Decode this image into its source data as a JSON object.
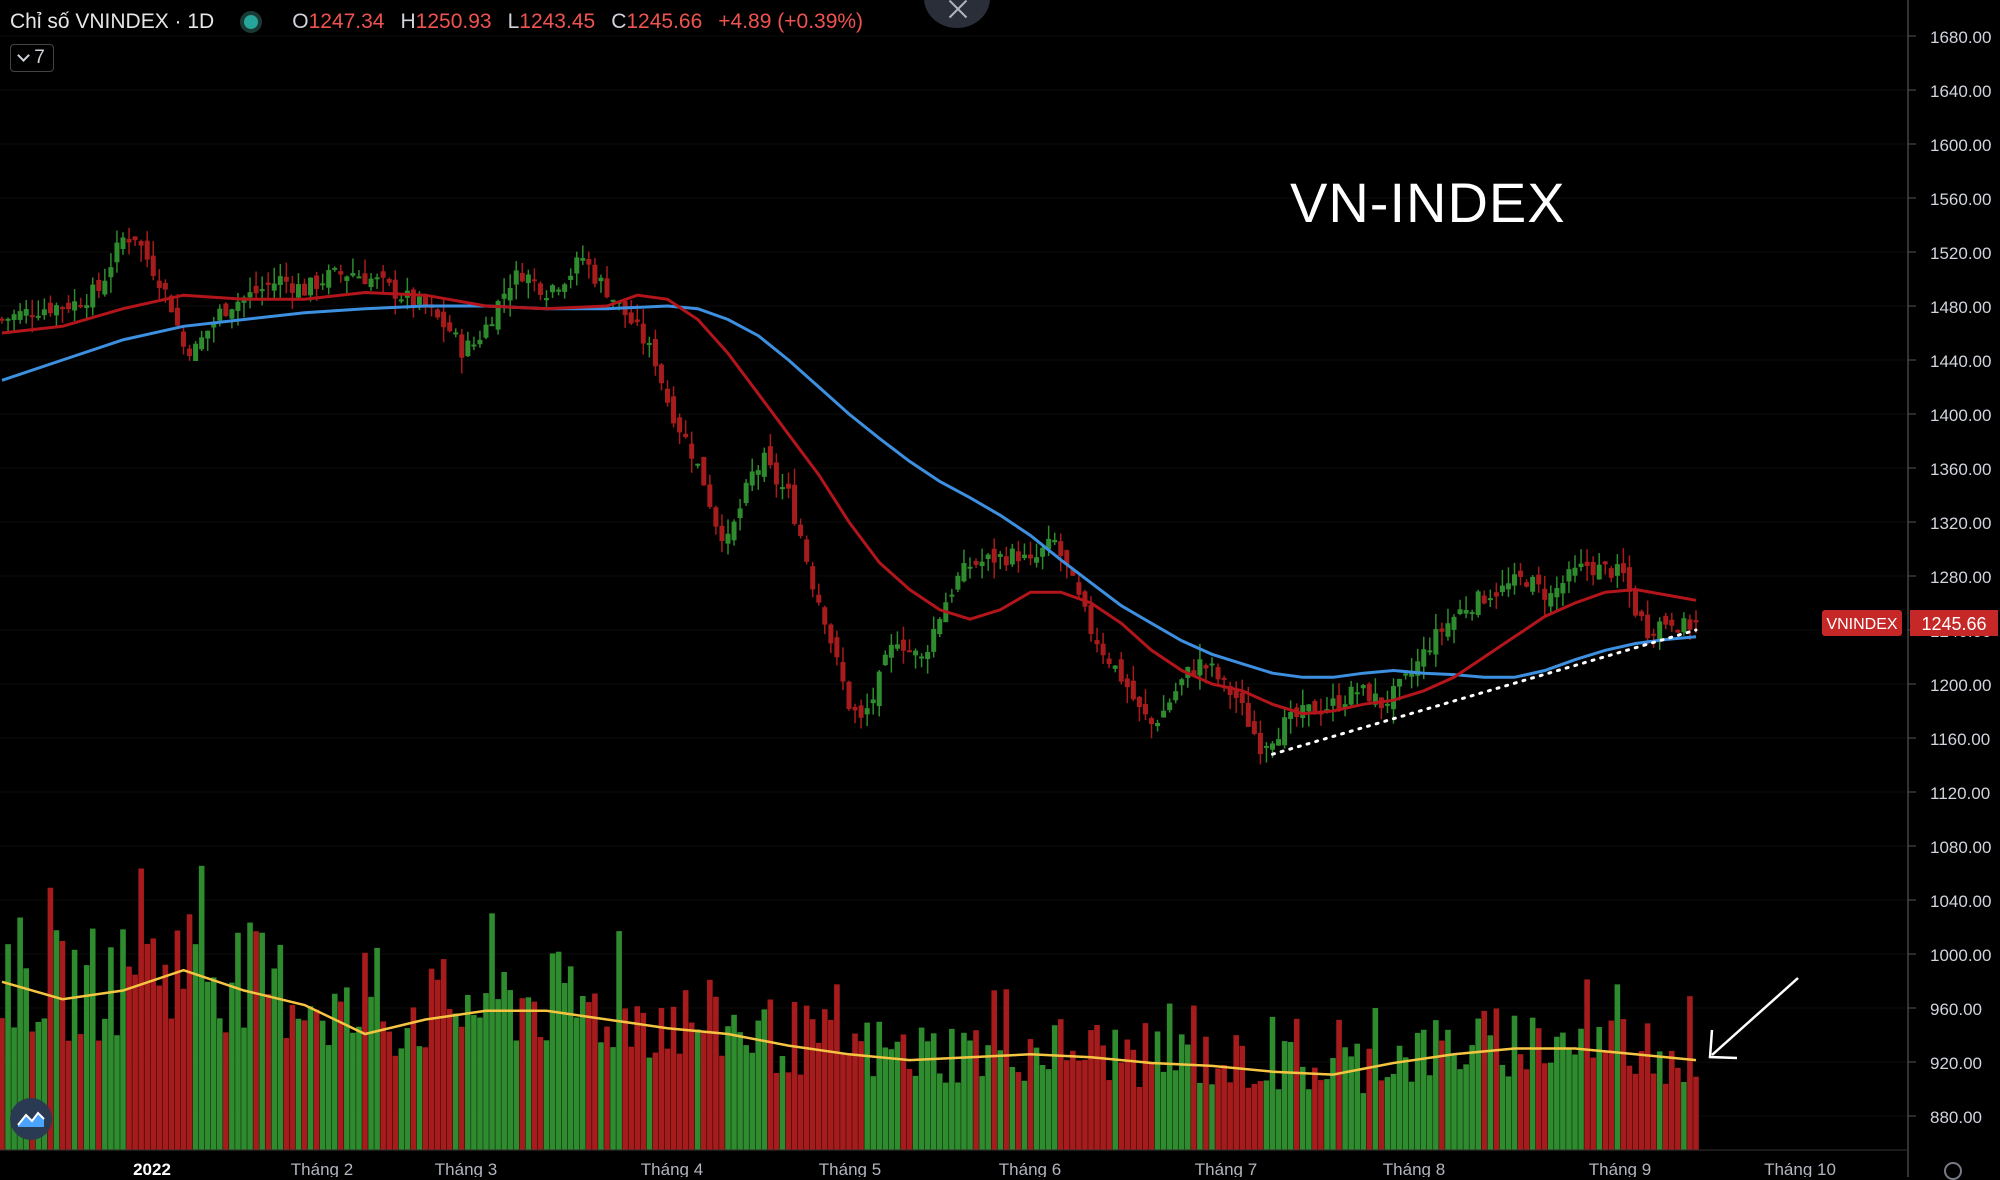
{
  "header": {
    "symbol": "Chỉ số VNINDEX · 1D",
    "o_label": "O",
    "o_value": "1247.34",
    "h_label": "H",
    "h_value": "1250.93",
    "l_label": "L",
    "l_value": "1243.45",
    "c_label": "C",
    "c_value": "1245.66",
    "change": "+4.89 (+0.39%)"
  },
  "indicators_count": "7",
  "colors": {
    "up": "#2e8b2e",
    "down": "#a61c1c",
    "ma_red": "#b3151b",
    "ma_blue": "#3d8fe0",
    "vol_ma": "#f5c542",
    "price_tag": "#c62828"
  },
  "icons": {
    "close": "close-icon",
    "collapse": "chevron-down-icon",
    "logo": "tradingview-logo-icon",
    "settings": "gear-icon"
  },
  "chart_data": {
    "type": "candlestick",
    "title": "VN-INDEX",
    "price_axis": {
      "ylim": [
        860,
        1700
      ],
      "ticks": [
        "1680.00",
        "1640.00",
        "1600.00",
        "1560.00",
        "1520.00",
        "1480.00",
        "1440.00",
        "1400.00",
        "1360.00",
        "1320.00",
        "1280.00",
        "1240.00",
        "1200.00",
        "1160.00",
        "1120.00",
        "1080.00",
        "1040.00",
        "1000.00",
        "960.00",
        "920.00",
        "880.00"
      ]
    },
    "x_axis": {
      "labels": [
        "2022",
        "Tháng 2",
        "Tháng 3",
        "Tháng 4",
        "Tháng 5",
        "Tháng 6",
        "Tháng 7",
        "Tháng 8",
        "Tháng 9",
        "Tháng 10"
      ]
    },
    "last_price": {
      "label": "VNINDEX",
      "value": "1245.66"
    },
    "close_path": [
      [
        0,
        1470
      ],
      [
        6,
        1478
      ],
      [
        12,
        1482
      ],
      [
        16,
        1492
      ],
      [
        18,
        1512
      ],
      [
        20,
        1530
      ],
      [
        22,
        1532
      ],
      [
        24,
        1515
      ],
      [
        26,
        1500
      ],
      [
        28,
        1480
      ],
      [
        30,
        1450
      ],
      [
        32,
        1448
      ],
      [
        34,
        1462
      ],
      [
        36,
        1475
      ],
      [
        38,
        1482
      ],
      [
        42,
        1490
      ],
      [
        46,
        1500
      ],
      [
        50,
        1492
      ],
      [
        54,
        1502
      ],
      [
        58,
        1505
      ],
      [
        62,
        1498
      ],
      [
        66,
        1488
      ],
      [
        70,
        1478
      ],
      [
        74,
        1462
      ],
      [
        76,
        1448
      ],
      [
        78,
        1452
      ],
      [
        80,
        1465
      ],
      [
        82,
        1482
      ],
      [
        84,
        1498
      ],
      [
        86,
        1505
      ],
      [
        88,
        1498
      ],
      [
        90,
        1492
      ],
      [
        92,
        1498
      ],
      [
        94,
        1505
      ],
      [
        96,
        1516
      ],
      [
        98,
        1502
      ],
      [
        100,
        1492
      ],
      [
        102,
        1480
      ],
      [
        104,
        1468
      ],
      [
        106,
        1455
      ],
      [
        108,
        1440
      ],
      [
        110,
        1410
      ],
      [
        112,
        1390
      ],
      [
        114,
        1372
      ],
      [
        116,
        1350
      ],
      [
        118,
        1320
      ],
      [
        120,
        1305
      ],
      [
        122,
        1330
      ],
      [
        124,
        1355
      ],
      [
        126,
        1365
      ],
      [
        128,
        1350
      ],
      [
        130,
        1340
      ],
      [
        132,
        1310
      ],
      [
        134,
        1275
      ],
      [
        136,
        1250
      ],
      [
        138,
        1215
      ],
      [
        140,
        1185
      ],
      [
        142,
        1172
      ],
      [
        144,
        1190
      ],
      [
        146,
        1215
      ],
      [
        148,
        1235
      ],
      [
        150,
        1225
      ],
      [
        152,
        1218
      ],
      [
        154,
        1240
      ],
      [
        156,
        1262
      ],
      [
        158,
        1278
      ],
      [
        160,
        1288
      ],
      [
        164,
        1293
      ],
      [
        168,
        1296
      ],
      [
        170,
        1288
      ],
      [
        172,
        1298
      ],
      [
        174,
        1305
      ],
      [
        176,
        1285
      ],
      [
        178,
        1262
      ],
      [
        180,
        1240
      ],
      [
        182,
        1225
      ],
      [
        184,
        1212
      ],
      [
        186,
        1198
      ],
      [
        188,
        1180
      ],
      [
        190,
        1170
      ],
      [
        192,
        1180
      ],
      [
        194,
        1195
      ],
      [
        196,
        1208
      ],
      [
        198,
        1215
      ],
      [
        200,
        1210
      ],
      [
        202,
        1198
      ],
      [
        204,
        1190
      ],
      [
        206,
        1172
      ],
      [
        208,
        1155
      ],
      [
        210,
        1162
      ],
      [
        212,
        1170
      ],
      [
        214,
        1175
      ],
      [
        216,
        1180
      ],
      [
        218,
        1182
      ],
      [
        220,
        1185
      ],
      [
        222,
        1190
      ],
      [
        224,
        1195
      ],
      [
        226,
        1192
      ],
      [
        228,
        1185
      ],
      [
        230,
        1192
      ],
      [
        232,
        1202
      ],
      [
        234,
        1215
      ],
      [
        236,
        1230
      ],
      [
        238,
        1240
      ],
      [
        240,
        1250
      ],
      [
        242,
        1258
      ],
      [
        244,
        1262
      ],
      [
        246,
        1268
      ],
      [
        248,
        1270
      ],
      [
        250,
        1275
      ],
      [
        252,
        1278
      ],
      [
        254,
        1270
      ],
      [
        256,
        1265
      ],
      [
        258,
        1275
      ],
      [
        260,
        1282
      ],
      [
        262,
        1288
      ],
      [
        264,
        1285
      ],
      [
        266,
        1284
      ],
      [
        268,
        1280
      ],
      [
        270,
        1255
      ],
      [
        272,
        1240
      ],
      [
        274,
        1245
      ],
      [
        276,
        1248
      ],
      [
        278,
        1242
      ],
      [
        280,
        1245.66
      ]
    ],
    "ma_red_path": [
      [
        0,
        1460
      ],
      [
        10,
        1465
      ],
      [
        20,
        1478
      ],
      [
        30,
        1488
      ],
      [
        40,
        1485
      ],
      [
        50,
        1485
      ],
      [
        60,
        1490
      ],
      [
        70,
        1488
      ],
      [
        80,
        1480
      ],
      [
        90,
        1478
      ],
      [
        100,
        1480
      ],
      [
        105,
        1488
      ],
      [
        110,
        1485
      ],
      [
        115,
        1470
      ],
      [
        120,
        1445
      ],
      [
        125,
        1415
      ],
      [
        130,
        1385
      ],
      [
        135,
        1355
      ],
      [
        140,
        1320
      ],
      [
        145,
        1290
      ],
      [
        150,
        1270
      ],
      [
        155,
        1255
      ],
      [
        160,
        1248
      ],
      [
        165,
        1255
      ],
      [
        170,
        1268
      ],
      [
        175,
        1268
      ],
      [
        180,
        1260
      ],
      [
        185,
        1245
      ],
      [
        190,
        1225
      ],
      [
        195,
        1210
      ],
      [
        200,
        1200
      ],
      [
        205,
        1195
      ],
      [
        210,
        1185
      ],
      [
        215,
        1178
      ],
      [
        220,
        1180
      ],
      [
        225,
        1185
      ],
      [
        230,
        1188
      ],
      [
        235,
        1195
      ],
      [
        240,
        1205
      ],
      [
        245,
        1220
      ],
      [
        250,
        1235
      ],
      [
        255,
        1250
      ],
      [
        260,
        1260
      ],
      [
        265,
        1268
      ],
      [
        270,
        1270
      ],
      [
        275,
        1266
      ],
      [
        280,
        1262
      ]
    ],
    "ma_blue_path": [
      [
        0,
        1425
      ],
      [
        10,
        1440
      ],
      [
        20,
        1455
      ],
      [
        30,
        1465
      ],
      [
        40,
        1470
      ],
      [
        50,
        1475
      ],
      [
        60,
        1478
      ],
      [
        70,
        1480
      ],
      [
        80,
        1480
      ],
      [
        90,
        1478
      ],
      [
        100,
        1478
      ],
      [
        110,
        1480
      ],
      [
        115,
        1478
      ],
      [
        120,
        1470
      ],
      [
        125,
        1458
      ],
      [
        130,
        1440
      ],
      [
        135,
        1420
      ],
      [
        140,
        1400
      ],
      [
        145,
        1382
      ],
      [
        150,
        1365
      ],
      [
        155,
        1350
      ],
      [
        160,
        1338
      ],
      [
        165,
        1325
      ],
      [
        170,
        1310
      ],
      [
        175,
        1292
      ],
      [
        180,
        1275
      ],
      [
        185,
        1258
      ],
      [
        190,
        1245
      ],
      [
        195,
        1232
      ],
      [
        200,
        1222
      ],
      [
        205,
        1215
      ],
      [
        210,
        1208
      ],
      [
        215,
        1205
      ],
      [
        220,
        1205
      ],
      [
        225,
        1208
      ],
      [
        230,
        1210
      ],
      [
        235,
        1208
      ],
      [
        240,
        1207
      ],
      [
        245,
        1205
      ],
      [
        250,
        1205
      ],
      [
        255,
        1210
      ],
      [
        260,
        1218
      ],
      [
        265,
        1225
      ],
      [
        270,
        1230
      ],
      [
        275,
        1233
      ],
      [
        280,
        1235
      ]
    ],
    "trendline": {
      "from": [
        210,
        1148
      ],
      "to": [
        280,
        1240
      ]
    },
    "volume_ma_path": [
      [
        0,
        0.58
      ],
      [
        10,
        0.52
      ],
      [
        20,
        0.55
      ],
      [
        30,
        0.62
      ],
      [
        40,
        0.55
      ],
      [
        50,
        0.5
      ],
      [
        60,
        0.4
      ],
      [
        70,
        0.45
      ],
      [
        80,
        0.48
      ],
      [
        90,
        0.48
      ],
      [
        100,
        0.45
      ],
      [
        110,
        0.42
      ],
      [
        120,
        0.4
      ],
      [
        130,
        0.36
      ],
      [
        140,
        0.33
      ],
      [
        150,
        0.31
      ],
      [
        160,
        0.32
      ],
      [
        170,
        0.33
      ],
      [
        180,
        0.32
      ],
      [
        190,
        0.3
      ],
      [
        200,
        0.29
      ],
      [
        210,
        0.27
      ],
      [
        220,
        0.26
      ],
      [
        230,
        0.3
      ],
      [
        240,
        0.33
      ],
      [
        250,
        0.35
      ],
      [
        260,
        0.35
      ],
      [
        270,
        0.33
      ],
      [
        280,
        0.31
      ]
    ]
  }
}
